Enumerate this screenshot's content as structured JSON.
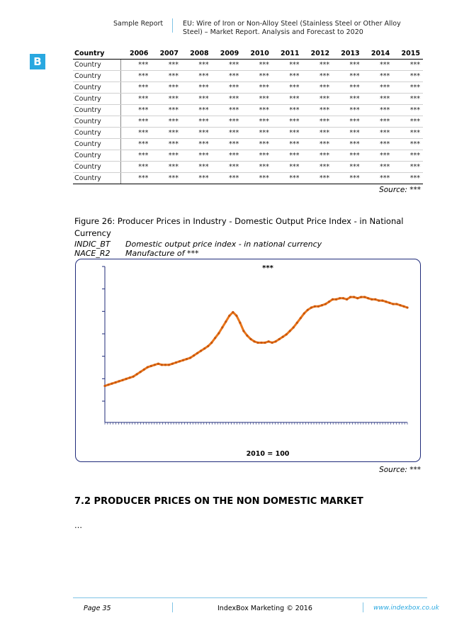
{
  "header": {
    "left": "Sample Report",
    "right": "EU: Wire of Iron or Non-Alloy Steel (Stainless Steel or Other Alloy Steel) – Market Report. Analysis and Forecast to 2020"
  },
  "logo": {
    "letter": "B",
    "color": "#29a8e0"
  },
  "table": {
    "columns": [
      "Country",
      "2006",
      "2007",
      "2008",
      "2009",
      "2010",
      "2011",
      "2012",
      "2013",
      "2014",
      "2015"
    ],
    "rows": [
      [
        "Country",
        "***",
        "***",
        "***",
        "***",
        "***",
        "***",
        "***",
        "***",
        "***",
        "***"
      ],
      [
        "Country",
        "***",
        "***",
        "***",
        "***",
        "***",
        "***",
        "***",
        "***",
        "***",
        "***"
      ],
      [
        "Country",
        "***",
        "***",
        "***",
        "***",
        "***",
        "***",
        "***",
        "***",
        "***",
        "***"
      ],
      [
        "Country",
        "***",
        "***",
        "***",
        "***",
        "***",
        "***",
        "***",
        "***",
        "***",
        "***"
      ],
      [
        "Country",
        "***",
        "***",
        "***",
        "***",
        "***",
        "***",
        "***",
        "***",
        "***",
        "***"
      ],
      [
        "Country",
        "***",
        "***",
        "***",
        "***",
        "***",
        "***",
        "***",
        "***",
        "***",
        "***"
      ],
      [
        "Country",
        "***",
        "***",
        "***",
        "***",
        "***",
        "***",
        "***",
        "***",
        "***",
        "***"
      ],
      [
        "Country",
        "***",
        "***",
        "***",
        "***",
        "***",
        "***",
        "***",
        "***",
        "***",
        "***"
      ],
      [
        "Country",
        "***",
        "***",
        "***",
        "***",
        "***",
        "***",
        "***",
        "***",
        "***",
        "***"
      ],
      [
        "Country",
        "***",
        "***",
        "***",
        "***",
        "***",
        "***",
        "***",
        "***",
        "***",
        "***"
      ],
      [
        "Country",
        "***",
        "***",
        "***",
        "***",
        "***",
        "***",
        "***",
        "***",
        "***",
        "***"
      ]
    ],
    "source": "Source: ***"
  },
  "figure": {
    "title": "Figure 26: Producer Prices in Industry - Domestic Output Price Index - in National Currency",
    "meta": [
      {
        "key": "INDIC_BT",
        "value": "Domestic output price index - in national currency"
      },
      {
        "key": "NACE_R2",
        "value": "Manufacture of ***"
      }
    ],
    "source": "Source: ***"
  },
  "chart_data": {
    "type": "line",
    "title": "***",
    "xlabel": "2010 = 100",
    "ylabel": "",
    "line_color": "#e8751a",
    "box_border_color": "#1f2b7a",
    "grid": false,
    "series": [
      {
        "values": [
          10,
          11,
          12,
          13,
          14,
          15,
          16,
          17,
          18,
          20,
          22,
          24,
          26,
          27,
          28,
          29,
          28,
          28,
          28,
          29,
          30,
          31,
          32,
          33,
          34,
          36,
          38,
          40,
          42,
          44,
          47,
          51,
          55,
          60,
          65,
          70,
          73,
          70,
          64,
          57,
          53,
          50,
          48,
          47,
          47,
          47,
          48,
          47,
          48,
          50,
          52,
          54,
          57,
          60,
          64,
          68,
          72,
          75,
          77,
          78,
          78,
          79,
          80,
          82,
          84,
          84,
          85,
          85,
          84,
          86,
          86,
          85,
          86,
          86,
          85,
          84,
          84,
          83,
          83,
          82,
          81,
          80,
          80,
          79,
          78,
          77
        ]
      }
    ]
  },
  "section": {
    "title": "7.2 PRODUCER PRICES ON THE NON DOMESTIC MARKET",
    "body": "…"
  },
  "footer": {
    "page": "Page 35",
    "center": "IndexBox Marketing © 2016",
    "url": "www.indexbox.co.uk",
    "accent": "#7fc4e6"
  }
}
